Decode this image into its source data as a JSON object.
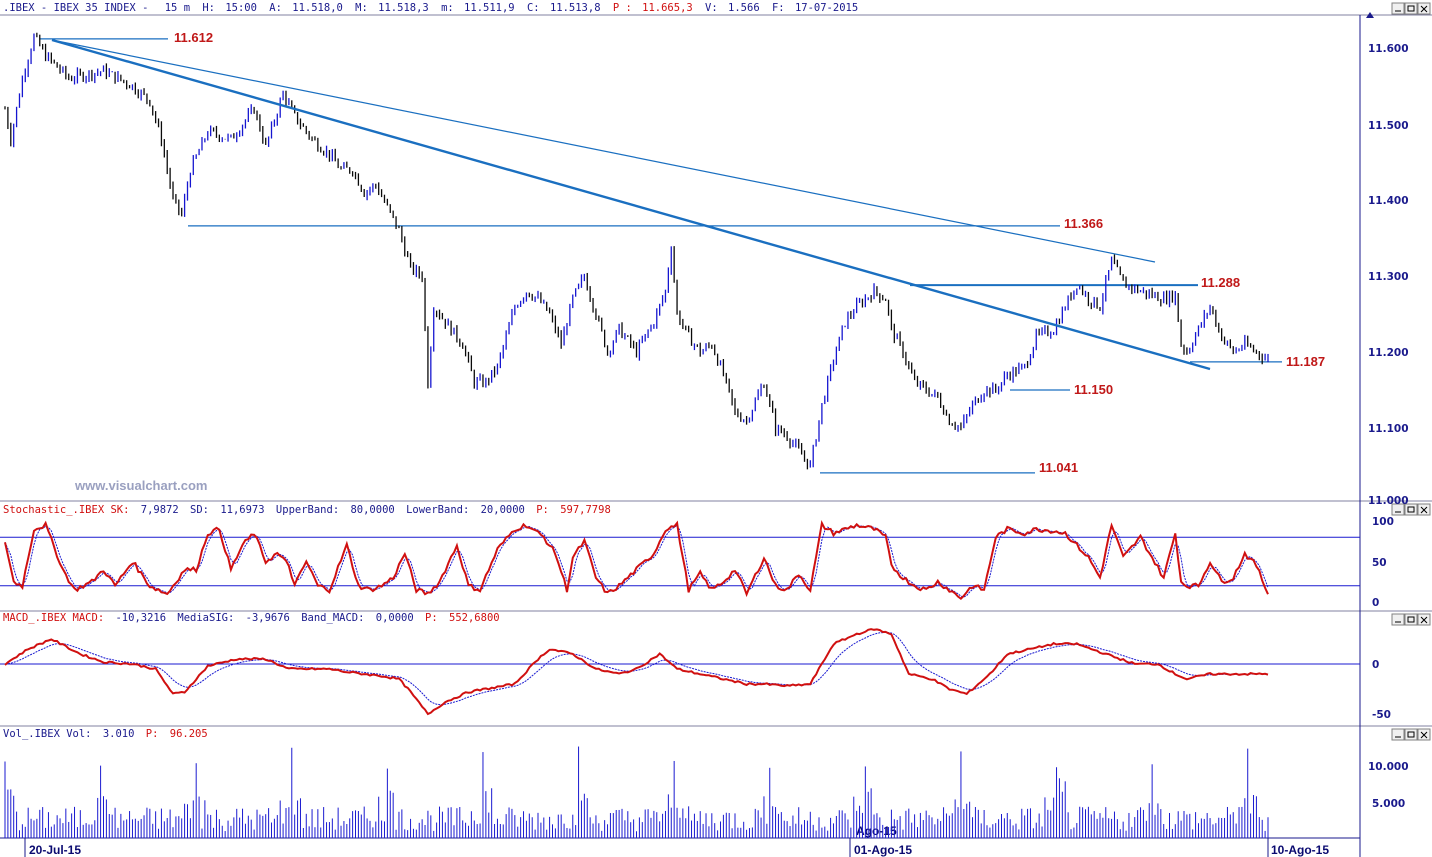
{
  "header": {
    "symbol": ".IBEX - IBEX 35 INDEX -",
    "timeframe": "15 m",
    "h_label": "H:",
    "h_value": "15:00",
    "a_label": "A:",
    "a_value": "11.518,0",
    "m_label": "M:",
    "m_value": "11.518,3",
    "low_label": "m:",
    "low_value": "11.511,9",
    "c_label": "C:",
    "c_value": "11.513,8",
    "p_label": "P :",
    "p_value": "11.665,3",
    "v_label": "V:",
    "v_value": "1.566",
    "f_label": "F:",
    "f_value": "17-07-2015"
  },
  "watermark": "www.visualchart.com",
  "colors": {
    "bear": "#0a0a0a",
    "bull": "#1616d0",
    "trend": "#1a6fc0",
    "level": "#c01818",
    "stoch": "#d01010",
    "signal": "#1a1ad0",
    "axis": "#1a1a8c"
  },
  "price_panel": {
    "y_ticks": [
      "11.600",
      "11.500",
      "11.400",
      "11.300",
      "11.200",
      "11.100",
      "11.000"
    ],
    "levels": [
      {
        "label": "11.612",
        "value": 11612
      },
      {
        "label": "11.366",
        "value": 11366
      },
      {
        "label": "11.288",
        "value": 11288
      },
      {
        "label": "11.187",
        "value": 11187
      },
      {
        "label": "11.150",
        "value": 11150
      },
      {
        "label": "11.041",
        "value": 11041
      }
    ]
  },
  "stoch_panel": {
    "title": "Stochastic_.IBEX SK:",
    "sk": "7,9872",
    "sd_label": "SD:",
    "sd": "11,6973",
    "ub_label": "UpperBand:",
    "ub": "80,0000",
    "lb_label": "LowerBand:",
    "lb": "20,0000",
    "p_label": "P:",
    "p": "597,7798",
    "y_ticks": [
      "100",
      "50",
      "0"
    ]
  },
  "macd_panel": {
    "title": "MACD_.IBEX MACD:",
    "macd": "-10,3216",
    "sig_label": "MediaSIG:",
    "sig": "-3,9676",
    "band_label": "Band_MACD:",
    "band": "0,0000",
    "p_label": "P:",
    "p": "552,6800",
    "y_ticks": [
      "0",
      "-50"
    ]
  },
  "vol_panel": {
    "title": "Vol_.IBEX Vol:",
    "vol": "3.010",
    "p_label": "P:",
    "p": "96.205",
    "y_ticks": [
      "10.000",
      "5.000"
    ]
  },
  "x_axis": {
    "labels": [
      "20-Jul-15",
      "01-Ago-15",
      "10-Ago-15"
    ],
    "mid_label": "Ago-15"
  },
  "chart_data": [
    {
      "type": "candlestick",
      "name": "IBEX 35 15m",
      "ylim": [
        11000,
        11640
      ],
      "keypoints": [
        [
          0,
          11520
        ],
        [
          2,
          11480
        ],
        [
          6,
          11560
        ],
        [
          10,
          11615
        ],
        [
          14,
          11590
        ],
        [
          22,
          11560
        ],
        [
          34,
          11570
        ],
        [
          44,
          11550
        ],
        [
          50,
          11530
        ],
        [
          54,
          11480
        ],
        [
          58,
          11400
        ],
        [
          61,
          11380
        ],
        [
          64,
          11440
        ],
        [
          70,
          11490
        ],
        [
          78,
          11480
        ],
        [
          86,
          11520
        ],
        [
          90,
          11470
        ],
        [
          96,
          11540
        ],
        [
          100,
          11510
        ],
        [
          106,
          11480
        ],
        [
          112,
          11460
        ],
        [
          116,
          11440
        ],
        [
          120,
          11440
        ],
        [
          124,
          11410
        ],
        [
          128,
          11420
        ],
        [
          132,
          11390
        ],
        [
          136,
          11360
        ],
        [
          140,
          11310
        ],
        [
          144,
          11300
        ],
        [
          146,
          11160
        ],
        [
          148,
          11260
        ],
        [
          152,
          11240
        ],
        [
          158,
          11210
        ],
        [
          162,
          11160
        ],
        [
          166,
          11160
        ],
        [
          170,
          11180
        ],
        [
          176,
          11260
        ],
        [
          180,
          11280
        ],
        [
          184,
          11270
        ],
        [
          188,
          11250
        ],
        [
          192,
          11210
        ],
        [
          196,
          11270
        ],
        [
          200,
          11300
        ],
        [
          204,
          11250
        ],
        [
          208,
          11200
        ],
        [
          212,
          11230
        ],
        [
          218,
          11200
        ],
        [
          224,
          11240
        ],
        [
          228,
          11280
        ],
        [
          230,
          11340
        ],
        [
          232,
          11250
        ],
        [
          236,
          11220
        ],
        [
          240,
          11200
        ],
        [
          244,
          11210
        ],
        [
          248,
          11170
        ],
        [
          252,
          11120
        ],
        [
          256,
          11110
        ],
        [
          262,
          11160
        ],
        [
          266,
          11100
        ],
        [
          270,
          11090
        ],
        [
          274,
          11070
        ],
        [
          278,
          11050
        ],
        [
          282,
          11130
        ],
        [
          286,
          11190
        ],
        [
          290,
          11240
        ],
        [
          294,
          11260
        ],
        [
          300,
          11280
        ],
        [
          304,
          11270
        ],
        [
          306,
          11230
        ],
        [
          310,
          11200
        ],
        [
          314,
          11160
        ],
        [
          318,
          11150
        ],
        [
          322,
          11140
        ],
        [
          326,
          11110
        ],
        [
          330,
          11100
        ],
        [
          334,
          11130
        ],
        [
          338,
          11150
        ],
        [
          342,
          11150
        ],
        [
          346,
          11170
        ],
        [
          352,
          11180
        ],
        [
          356,
          11220
        ],
        [
          362,
          11230
        ],
        [
          366,
          11260
        ],
        [
          370,
          11290
        ],
        [
          374,
          11270
        ],
        [
          378,
          11260
        ],
        [
          382,
          11320
        ],
        [
          386,
          11290
        ],
        [
          392,
          11280
        ],
        [
          400,
          11270
        ],
        [
          404,
          11275
        ],
        [
          406,
          11210
        ],
        [
          408,
          11200
        ],
        [
          412,
          11230
        ],
        [
          416,
          11260
        ],
        [
          420,
          11220
        ],
        [
          424,
          11200
        ],
        [
          428,
          11210
        ],
        [
          432,
          11200
        ],
        [
          436,
          11190
        ]
      ]
    },
    {
      "type": "line",
      "name": "Stochastic",
      "ylim": [
        0,
        100
      ],
      "bands": [
        80,
        20
      ],
      "keypoints": [
        [
          0,
          75
        ],
        [
          3,
          25
        ],
        [
          6,
          20
        ],
        [
          10,
          90
        ],
        [
          14,
          95
        ],
        [
          20,
          40
        ],
        [
          24,
          15
        ],
        [
          30,
          25
        ],
        [
          34,
          40
        ],
        [
          38,
          20
        ],
        [
          44,
          50
        ],
        [
          50,
          20
        ],
        [
          56,
          10
        ],
        [
          60,
          30
        ],
        [
          62,
          40
        ],
        [
          66,
          40
        ],
        [
          70,
          85
        ],
        [
          74,
          90
        ],
        [
          78,
          40
        ],
        [
          82,
          70
        ],
        [
          86,
          85
        ],
        [
          90,
          50
        ],
        [
          94,
          60
        ],
        [
          98,
          45
        ],
        [
          100,
          20
        ],
        [
          104,
          50
        ],
        [
          108,
          20
        ],
        [
          112,
          15
        ],
        [
          118,
          70
        ],
        [
          122,
          20
        ],
        [
          126,
          15
        ],
        [
          130,
          20
        ],
        [
          134,
          30
        ],
        [
          138,
          60
        ],
        [
          142,
          15
        ],
        [
          146,
          10
        ],
        [
          150,
          25
        ],
        [
          156,
          70
        ],
        [
          160,
          20
        ],
        [
          164,
          15
        ],
        [
          170,
          65
        ],
        [
          176,
          90
        ],
        [
          180,
          95
        ],
        [
          186,
          80
        ],
        [
          190,
          60
        ],
        [
          194,
          15
        ],
        [
          196,
          55
        ],
        [
          200,
          75
        ],
        [
          204,
          30
        ],
        [
          208,
          10
        ],
        [
          212,
          20
        ],
        [
          218,
          40
        ],
        [
          224,
          60
        ],
        [
          228,
          90
        ],
        [
          232,
          95
        ],
        [
          236,
          15
        ],
        [
          240,
          35
        ],
        [
          244,
          15
        ],
        [
          248,
          25
        ],
        [
          252,
          40
        ],
        [
          256,
          10
        ],
        [
          262,
          55
        ],
        [
          266,
          20
        ],
        [
          270,
          15
        ],
        [
          274,
          35
        ],
        [
          278,
          15
        ],
        [
          282,
          95
        ],
        [
          286,
          85
        ],
        [
          290,
          90
        ],
        [
          294,
          95
        ],
        [
          300,
          90
        ],
        [
          304,
          80
        ],
        [
          306,
          45
        ],
        [
          310,
          30
        ],
        [
          314,
          20
        ],
        [
          318,
          15
        ],
        [
          322,
          25
        ],
        [
          326,
          15
        ],
        [
          330,
          5
        ],
        [
          334,
          20
        ],
        [
          338,
          15
        ],
        [
          342,
          80
        ],
        [
          346,
          90
        ],
        [
          352,
          85
        ],
        [
          356,
          90
        ],
        [
          362,
          88
        ],
        [
          366,
          85
        ],
        [
          370,
          70
        ],
        [
          374,
          55
        ],
        [
          378,
          30
        ],
        [
          382,
          95
        ],
        [
          386,
          55
        ],
        [
          392,
          80
        ],
        [
          400,
          30
        ],
        [
          404,
          85
        ],
        [
          406,
          25
        ],
        [
          408,
          20
        ],
        [
          412,
          20
        ],
        [
          416,
          50
        ],
        [
          420,
          25
        ],
        [
          424,
          30
        ],
        [
          428,
          60
        ],
        [
          432,
          45
        ],
        [
          436,
          10
        ]
      ]
    },
    {
      "type": "line",
      "name": "MACD",
      "ylim": [
        -65,
        40
      ],
      "zero": 0,
      "keypoints": [
        [
          0,
          0
        ],
        [
          8,
          15
        ],
        [
          16,
          25
        ],
        [
          26,
          10
        ],
        [
          34,
          2
        ],
        [
          44,
          0
        ],
        [
          52,
          -5
        ],
        [
          58,
          -30
        ],
        [
          62,
          -28
        ],
        [
          70,
          -2
        ],
        [
          80,
          5
        ],
        [
          90,
          5
        ],
        [
          98,
          -5
        ],
        [
          104,
          -5
        ],
        [
          112,
          -5
        ],
        [
          118,
          -8
        ],
        [
          124,
          -10
        ],
        [
          130,
          -12
        ],
        [
          136,
          -15
        ],
        [
          140,
          -28
        ],
        [
          146,
          -50
        ],
        [
          152,
          -38
        ],
        [
          160,
          -28
        ],
        [
          166,
          -25
        ],
        [
          176,
          -20
        ],
        [
          184,
          5
        ],
        [
          188,
          15
        ],
        [
          196,
          10
        ],
        [
          204,
          -5
        ],
        [
          212,
          -10
        ],
        [
          218,
          -5
        ],
        [
          226,
          10
        ],
        [
          232,
          -5
        ],
        [
          240,
          -10
        ],
        [
          248,
          -15
        ],
        [
          256,
          -20
        ],
        [
          262,
          -20
        ],
        [
          270,
          -22
        ],
        [
          278,
          -20
        ],
        [
          282,
          0
        ],
        [
          286,
          20
        ],
        [
          294,
          30
        ],
        [
          300,
          35
        ],
        [
          306,
          30
        ],
        [
          312,
          -10
        ],
        [
          320,
          -15
        ],
        [
          326,
          -25
        ],
        [
          332,
          -30
        ],
        [
          340,
          -10
        ],
        [
          346,
          10
        ],
        [
          354,
          15
        ],
        [
          362,
          20
        ],
        [
          370,
          20
        ],
        [
          380,
          10
        ],
        [
          390,
          0
        ],
        [
          398,
          0
        ],
        [
          404,
          -10
        ],
        [
          408,
          -15
        ],
        [
          416,
          -10
        ],
        [
          424,
          -10
        ],
        [
          432,
          -10
        ],
        [
          436,
          -10
        ]
      ]
    },
    {
      "type": "bar",
      "name": "Volume",
      "ylim": [
        0,
        14000
      ],
      "spike_every": 33,
      "spike_value": 12000
    }
  ]
}
